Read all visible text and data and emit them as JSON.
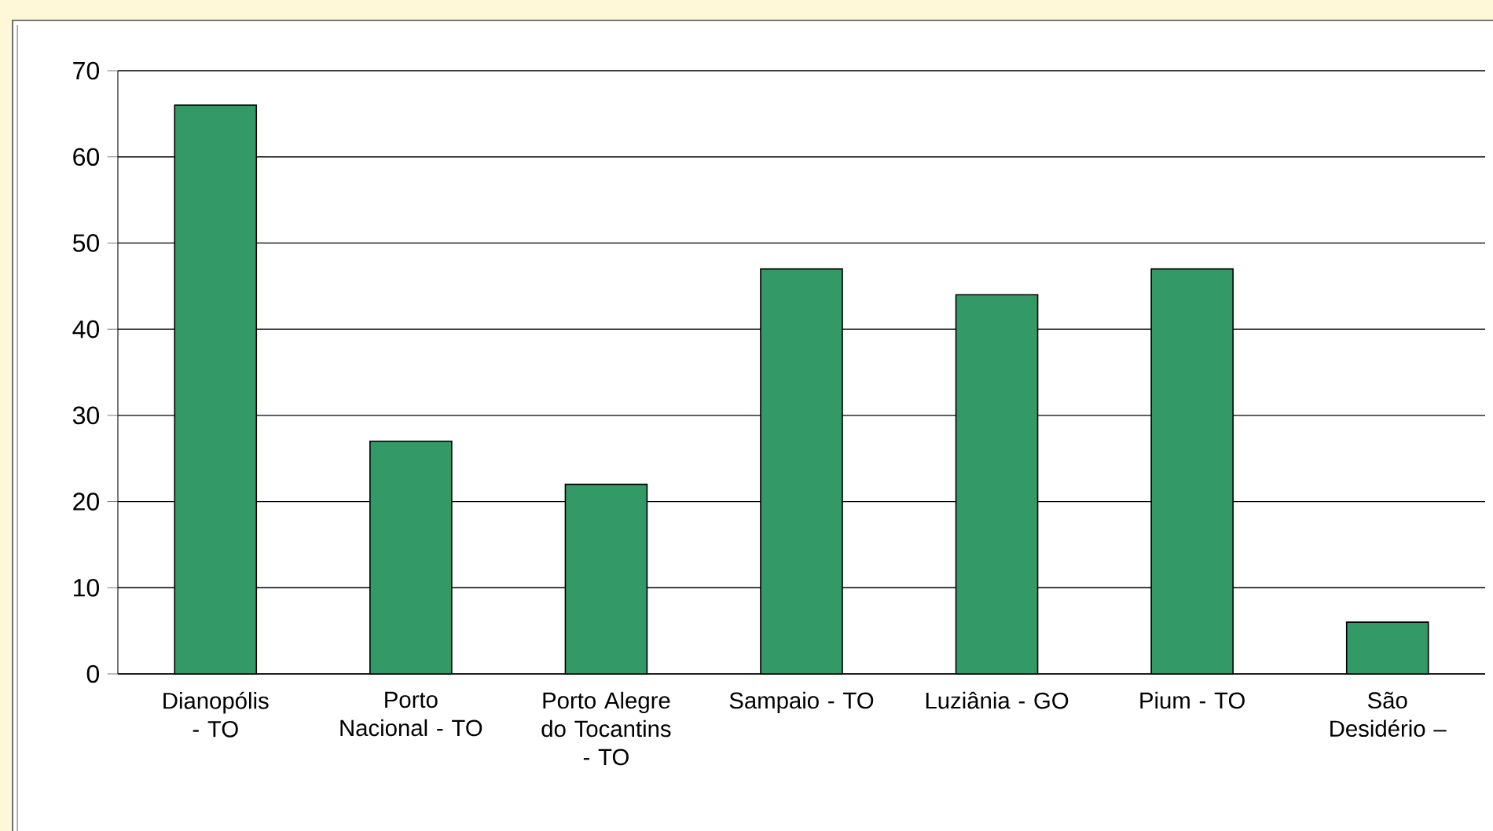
{
  "chart_data": {
    "type": "bar",
    "categories": [
      "Dianopólis - TO",
      "Porto Nacional - TO",
      "Porto Alegre do Tocantins - TO",
      "Sampaio - TO",
      "Luziânia - GO",
      "Pium - TO",
      "São Desidério –"
    ],
    "values": [
      66,
      27,
      22,
      47,
      44,
      47,
      6
    ],
    "color": "#339966",
    "ylim": [
      0,
      70
    ],
    "yticks": [
      0,
      10,
      20,
      30,
      40,
      50,
      60,
      70
    ],
    "grid": "y"
  }
}
